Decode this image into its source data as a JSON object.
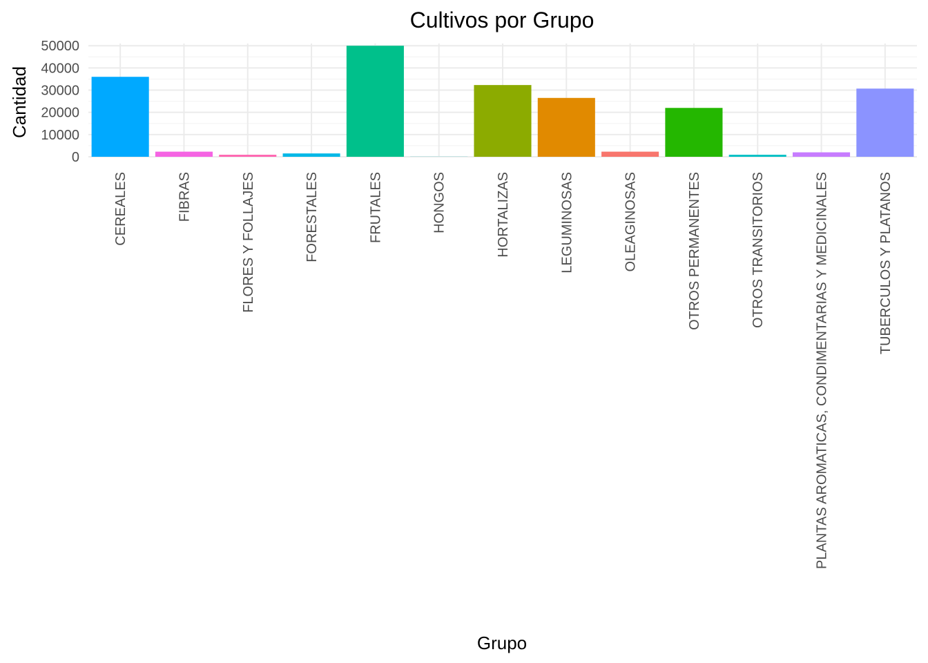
{
  "chart_data": {
    "type": "bar",
    "title": "Cultivos por Grupo",
    "xlabel": "Grupo",
    "ylabel": "Cantidad",
    "ylim": [
      0,
      51000
    ],
    "yticks": [
      0,
      10000,
      20000,
      30000,
      40000,
      50000
    ],
    "ytick_labels": [
      "0",
      "10000",
      "20000",
      "30000",
      "40000",
      "50000"
    ],
    "grid": true,
    "legend": "none",
    "categories": [
      "CEREALES",
      "FIBRAS",
      "FLORES Y FOLLAJES",
      "FORESTALES",
      "FRUTALES",
      "HONGOS",
      "HORTALIZAS",
      "LEGUMINOSAS",
      "OLEAGINOSAS",
      "OTROS PERMANENTES",
      "OTROS TRANSITORIOS",
      "PLANTAS AROMATICAS, CONDIMENTARIAS Y MEDICINALES",
      "TUBERCULOS Y PLATANOS"
    ],
    "values": [
      36000,
      2300,
      900,
      1500,
      50000,
      50,
      32300,
      26500,
      2300,
      22000,
      900,
      2000,
      30700
    ],
    "colors": [
      "#00A9FF",
      "#F564E3",
      "#FF64B0",
      "#00B8E7",
      "#00C08B",
      "#00BFC4",
      "#8CAB00",
      "#E18A00",
      "#F8766D",
      "#24B700",
      "#00BFC4",
      "#C77CFF",
      "#8B93FF"
    ]
  }
}
